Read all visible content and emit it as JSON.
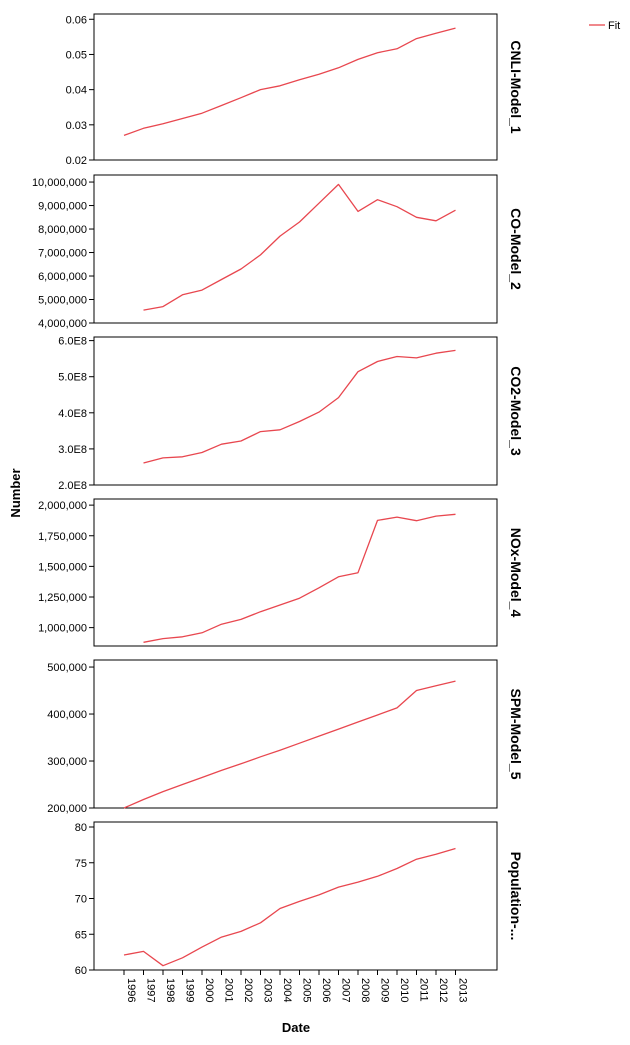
{
  "legend": {
    "label": "Fit",
    "color": "#e8474f"
  },
  "y_axis_label": "Number",
  "x_axis_label": "Date",
  "chart_data": {
    "type": "line",
    "x_categories": [
      "1996",
      "1997",
      "1998",
      "1999",
      "2000",
      "2001",
      "2002",
      "2003",
      "2004",
      "2005",
      "2006",
      "2007",
      "2008",
      "2009",
      "2010",
      "2011",
      "2012",
      "2013"
    ],
    "panels": [
      {
        "name": "CNLI-Model_1",
        "ticks": [
          {
            "value": 0.02,
            "label": "0.02"
          },
          {
            "value": 0.03,
            "label": "0.03"
          },
          {
            "value": 0.04,
            "label": "0.04"
          },
          {
            "value": 0.05,
            "label": "0.05"
          },
          {
            "value": 0.06,
            "label": "0.06"
          }
        ],
        "ylim": [
          0.02,
          0.0615
        ],
        "values": [
          0.027,
          0.029,
          0.0303,
          0.0318,
          0.0333,
          0.0355,
          0.0377,
          0.04,
          0.0411,
          0.0428,
          0.0444,
          0.0462,
          0.0486,
          0.0505,
          0.0516,
          0.0545,
          0.056,
          0.0575
        ]
      },
      {
        "name": "CO-Model_2",
        "ticks": [
          {
            "value": 4000000,
            "label": "4,000,000"
          },
          {
            "value": 5000000,
            "label": "5,000,000"
          },
          {
            "value": 6000000,
            "label": "6,000,000"
          },
          {
            "value": 7000000,
            "label": "7,000,000"
          },
          {
            "value": 8000000,
            "label": "8,000,000"
          },
          {
            "value": 9000000,
            "label": "9,000,000"
          },
          {
            "value": 10000000,
            "label": "10,000,000"
          }
        ],
        "ylim": [
          4000000,
          10300000
        ],
        "values": [
          null,
          4550000,
          4700000,
          5200000,
          5400000,
          5850000,
          6300000,
          6900000,
          7700000,
          8300000,
          9100000,
          9900000,
          8750000,
          9250000,
          8950000,
          8500000,
          8350000,
          8800000
        ]
      },
      {
        "name": "CO2-Model_3",
        "ticks": [
          {
            "value": 200000000,
            "label": "2.0E8"
          },
          {
            "value": 300000000,
            "label": "3.0E8"
          },
          {
            "value": 400000000,
            "label": "4.0E8"
          },
          {
            "value": 500000000,
            "label": "5.0E8"
          },
          {
            "value": 600000000,
            "label": "6.0E8"
          }
        ],
        "ylim": [
          200000000,
          610000000
        ],
        "values": [
          null,
          261000000,
          275000000,
          278000000,
          290000000,
          313000000,
          322000000,
          348000000,
          353000000,
          376000000,
          402000000,
          442000000,
          514000000,
          542000000,
          556000000,
          552000000,
          565000000,
          573000000
        ]
      },
      {
        "name": "NOx-Model_4",
        "ticks": [
          {
            "value": 1000000,
            "label": "1,000,000"
          },
          {
            "value": 1250000,
            "label": "1,250,000"
          },
          {
            "value": 1500000,
            "label": "1,500,000"
          },
          {
            "value": 1750000,
            "label": "1,750,000"
          },
          {
            "value": 2000000,
            "label": "2,000,000"
          }
        ],
        "ylim": [
          850000,
          2050000
        ],
        "values": [
          null,
          880000,
          910000,
          925000,
          958000,
          1028000,
          1067000,
          1130000,
          1185000,
          1240000,
          1325000,
          1415000,
          1448000,
          1875000,
          1902000,
          1873000,
          1910000,
          1925000
        ]
      },
      {
        "name": "SPM-Model_5",
        "ticks": [
          {
            "value": 200000,
            "label": "200,000"
          },
          {
            "value": 300000,
            "label": "300,000"
          },
          {
            "value": 400000,
            "label": "400,000"
          },
          {
            "value": 500000,
            "label": "500,000"
          }
        ],
        "ylim": [
          200000,
          515000
        ],
        "values": [
          200000,
          218000,
          235000,
          250000,
          265000,
          280000,
          294000,
          309000,
          323000,
          338000,
          353000,
          368000,
          383000,
          398000,
          413000,
          450000,
          460000,
          470000
        ]
      },
      {
        "name": "Population-...",
        "ticks": [
          {
            "value": 60,
            "label": "60"
          },
          {
            "value": 65,
            "label": "65"
          },
          {
            "value": 70,
            "label": "70"
          },
          {
            "value": 75,
            "label": "75"
          },
          {
            "value": 80,
            "label": "80"
          }
        ],
        "ylim": [
          60,
          80.7
        ],
        "values": [
          62.1,
          62.6,
          60.6,
          61.7,
          63.2,
          64.6,
          65.4,
          66.6,
          68.6,
          69.6,
          70.5,
          71.6,
          72.3,
          73.1,
          74.2,
          75.5,
          76.2,
          77
        ]
      }
    ]
  }
}
